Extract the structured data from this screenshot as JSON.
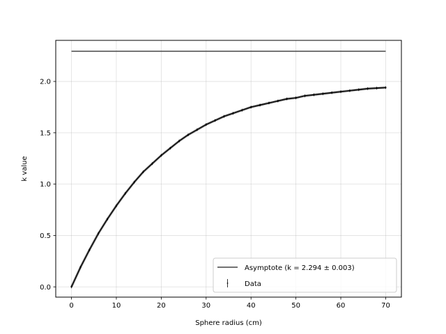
{
  "chart_data": {
    "type": "line",
    "title": "",
    "xlabel": "Sphere radius (cm)",
    "ylabel": "k value",
    "xlim": [
      -3.5,
      73.5
    ],
    "ylim": [
      -0.1,
      2.4
    ],
    "xticks": [
      0,
      10,
      20,
      30,
      40,
      50,
      60,
      70
    ],
    "xtick_labels": [
      "0",
      "10",
      "20",
      "30",
      "40",
      "50",
      "60",
      "70"
    ],
    "yticks": [
      0.0,
      0.5,
      1.0,
      1.5,
      2.0
    ],
    "ytick_labels": [
      "0.0",
      "0.5",
      "1.0",
      "1.5",
      "2.0"
    ],
    "grid": true,
    "legend_position": "lower-right",
    "series": [
      {
        "name": "Asymptote (k = 2.294 ± 0.003)",
        "kind": "line",
        "color": "#444444",
        "x": [
          0,
          70
        ],
        "y": [
          2.294,
          2.294
        ]
      },
      {
        "name": "Data",
        "kind": "errorbar",
        "color": "#000000",
        "x": [
          0,
          2,
          4,
          6,
          8,
          10,
          12,
          14,
          16,
          18,
          20,
          22,
          24,
          26,
          28,
          30,
          32,
          34,
          36,
          38,
          40,
          42,
          44,
          46,
          48,
          50,
          52,
          54,
          56,
          58,
          60,
          62,
          64,
          66,
          68,
          70
        ],
        "y": [
          0.0,
          0.19,
          0.36,
          0.52,
          0.66,
          0.79,
          0.91,
          1.02,
          1.12,
          1.2,
          1.28,
          1.35,
          1.42,
          1.48,
          1.53,
          1.58,
          1.62,
          1.66,
          1.69,
          1.72,
          1.75,
          1.77,
          1.79,
          1.81,
          1.83,
          1.84,
          1.86,
          1.87,
          1.88,
          1.89,
          1.9,
          1.91,
          1.92,
          1.93,
          1.935,
          1.94
        ]
      }
    ]
  }
}
